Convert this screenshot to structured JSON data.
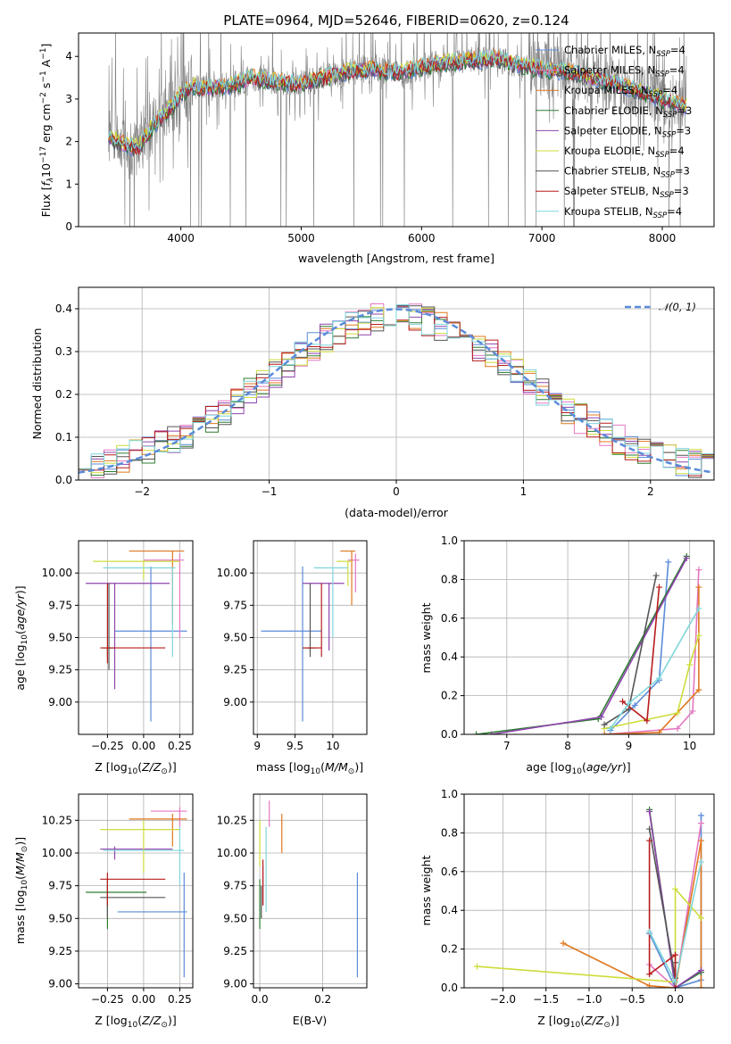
{
  "figure": {
    "title": "PLATE=0964, MJD=52646, FIBERID=0620, z=0.124"
  },
  "models": [
    {
      "label": "Chabrier MILES, N_SSP=4",
      "color": "#5b8bd9"
    },
    {
      "label": "Salpeter MILES, N_SSP=4",
      "color": "#e377c2"
    },
    {
      "label": "Kroupa MILES, N_SSP=4",
      "color": "#e0781f"
    },
    {
      "label": "Chabrier ELODIE, N_SSP=3",
      "color": "#2e7d32"
    },
    {
      "label": "Salpeter ELODIE, N_SSP=3",
      "color": "#8e44ad"
    },
    {
      "label": "Kroupa ELODIE, N_SSP=4",
      "color": "#cddc39"
    },
    {
      "label": "Chabrier STELIB, N_SSP=3",
      "color": "#555555"
    },
    {
      "label": "Salpeter STELIB, N_SSP=3",
      "color": "#b71c1c"
    },
    {
      "label": "Kroupa STELIB, N_SSP=4",
      "color": "#7fd6db"
    }
  ],
  "chart_data": [
    {
      "id": "spectrum",
      "type": "line",
      "title": "PLATE=0964, MJD=52646, FIBERID=0620, z=0.124",
      "xlabel": "wavelength [Angstrom, rest frame]",
      "ylabel": "Flux [fλ10^-17 erg cm^-2 s^-1 A^-1]",
      "xlim": [
        3150,
        8430
      ],
      "ylim": [
        0,
        4.55
      ],
      "xticks": [
        4000,
        5000,
        6000,
        7000,
        8000
      ],
      "yticks": [
        0,
        1,
        2,
        3,
        4
      ],
      "data_color": "#808080",
      "continuum": {
        "x": [
          3400,
          3550,
          3650,
          3750,
          3850,
          3950,
          4000,
          4100,
          4200,
          4400,
          4600,
          4800,
          5000,
          5200,
          5400,
          5600,
          5800,
          6000,
          6200,
          6400,
          6600,
          6800,
          7000,
          7200,
          7400,
          7600,
          7800,
          8000,
          8200
        ],
        "y": [
          2.1,
          1.9,
          1.85,
          2.3,
          2.6,
          2.9,
          3.1,
          3.3,
          3.25,
          3.3,
          3.5,
          3.4,
          3.35,
          3.5,
          3.65,
          3.7,
          3.6,
          3.75,
          3.85,
          3.9,
          3.95,
          3.8,
          3.7,
          3.65,
          3.5,
          3.35,
          3.2,
          3.0,
          2.8
        ]
      }
    },
    {
      "id": "residuals",
      "type": "bar",
      "xlabel": "(data-model)/error",
      "ylabel": "Normed distribution",
      "xlim": [
        -2.5,
        2.5
      ],
      "ylim": [
        0,
        0.45
      ],
      "xticks": [
        -2,
        -1,
        0,
        1,
        2
      ],
      "yticks": [
        0.0,
        0.1,
        0.2,
        0.3,
        0.4
      ],
      "bin_width": 0.1,
      "grid": true,
      "reference": {
        "name": "𝒩(0, 1)",
        "color": "#5b8bd9",
        "mean": 0,
        "sigma": 1
      }
    },
    {
      "id": "age_vs_Z",
      "type": "scatter",
      "xlabel": "Z [log10(Z/Z⊙)]",
      "ylabel": "age  [log10(age/yr)]",
      "xlim": [
        -0.45,
        0.34
      ],
      "ylim": [
        8.75,
        10.25
      ],
      "xticks": [
        -0.25,
        0.0,
        0.25
      ],
      "xtick_labels": [
        "−0.25",
        "0.00",
        "0.25"
      ],
      "yticks": [
        9.0,
        9.25,
        9.5,
        9.75,
        10.0
      ],
      "grid": true,
      "points": [
        {
          "m": 0,
          "x": 0.05,
          "y": 9.55,
          "ex": [
            -0.2,
            0.3
          ],
          "ey": [
            8.85,
            10.05
          ]
        },
        {
          "m": 1,
          "x": 0.25,
          "y": 10.1,
          "ex": [
            0.0,
            0.28
          ],
          "ey": [
            9.5,
            10.15
          ]
        },
        {
          "m": 2,
          "x": 0.2,
          "y": 10.17,
          "ex": [
            -0.1,
            0.28
          ],
          "ey": [
            9.6,
            10.17
          ]
        },
        {
          "m": 3,
          "x": -0.25,
          "y": 9.42,
          "ex": [
            -0.28,
            -0.2
          ],
          "ey": [
            9.35,
            9.42
          ]
        },
        {
          "m": 4,
          "x": -0.2,
          "y": 9.92,
          "ex": [
            -0.4,
            0.18
          ],
          "ey": [
            9.1,
            9.92
          ]
        },
        {
          "m": 5,
          "x": 0.0,
          "y": 10.09,
          "ex": [
            -0.35,
            0.25
          ],
          "ey": [
            9.95,
            10.09
          ]
        },
        {
          "m": 6,
          "x": -0.24,
          "y": 9.42,
          "ex": [
            -0.25,
            -0.22
          ],
          "ey": [
            9.25,
            9.92
          ]
        },
        {
          "m": 7,
          "x": -0.25,
          "y": 9.42,
          "ex": [
            -0.3,
            0.15
          ],
          "ey": [
            9.3,
            9.92
          ]
        },
        {
          "m": 8,
          "x": 0.2,
          "y": 10.04,
          "ex": [
            -0.28,
            0.22
          ],
          "ey": [
            9.35,
            10.04
          ]
        }
      ]
    },
    {
      "id": "age_vs_mass",
      "type": "scatter",
      "xlabel": "mass [log10(M/M⊙)]",
      "ylabel": "",
      "xlim": [
        8.95,
        10.45
      ],
      "ylim": [
        8.75,
        10.25
      ],
      "xticks": [
        9.0,
        9.5,
        10.0
      ],
      "yticks": [
        9.0,
        9.25,
        9.5,
        9.75,
        10.0
      ],
      "grid": true,
      "points": [
        {
          "m": 0,
          "x": 9.6,
          "y": 9.55,
          "ex": [
            9.05,
            9.85
          ],
          "ey": [
            8.85,
            10.05
          ]
        },
        {
          "m": 1,
          "x": 10.3,
          "y": 10.1,
          "ex": [
            10.2,
            10.35
          ],
          "ey": [
            9.85,
            10.15
          ]
        },
        {
          "m": 2,
          "x": 10.25,
          "y": 10.17,
          "ex": [
            10.1,
            10.3
          ],
          "ey": [
            9.75,
            10.17
          ]
        },
        {
          "m": 3,
          "x": 9.7,
          "y": 9.42,
          "ex": [
            9.6,
            9.8
          ],
          "ey": [
            9.4,
            9.42
          ]
        },
        {
          "m": 4,
          "x": 9.95,
          "y": 9.92,
          "ex": [
            9.6,
            10.15
          ],
          "ey": [
            9.4,
            9.92
          ]
        },
        {
          "m": 5,
          "x": 10.2,
          "y": 10.09,
          "ex": [
            10.05,
            10.25
          ],
          "ey": [
            9.9,
            10.09
          ]
        },
        {
          "m": 6,
          "x": 9.7,
          "y": 9.42,
          "ex": [
            9.65,
            9.75
          ],
          "ey": [
            9.35,
            9.92
          ]
        },
        {
          "m": 7,
          "x": 9.85,
          "y": 9.42,
          "ex": [
            9.6,
            9.85
          ],
          "ey": [
            9.35,
            9.92
          ]
        },
        {
          "m": 8,
          "x": 10.0,
          "y": 10.04,
          "ex": [
            9.75,
            10.2
          ],
          "ey": [
            9.5,
            10.04
          ]
        }
      ]
    },
    {
      "id": "weight_vs_age",
      "type": "line",
      "xlabel": "age  [log10(age/yr)]",
      "ylabel": "mass weight",
      "xlim": [
        6.3,
        10.4
      ],
      "ylim": [
        0,
        1.0
      ],
      "xticks": [
        7,
        8,
        9,
        10
      ],
      "yticks": [
        0.0,
        0.2,
        0.4,
        0.6,
        0.8,
        1.0
      ],
      "grid": true,
      "series": [
        {
          "m": 0,
          "x": [
            8.7,
            9.1,
            9.5,
            9.65
          ],
          "y": [
            0.02,
            0.15,
            0.28,
            0.89
          ]
        },
        {
          "m": 1,
          "x": [
            8.6,
            9.8,
            10.05,
            10.15
          ],
          "y": [
            0.0,
            0.03,
            0.12,
            0.85
          ]
        },
        {
          "m": 2,
          "x": [
            8.6,
            9.5,
            10.15,
            10.15
          ],
          "y": [
            0.0,
            0.01,
            0.23,
            0.76
          ]
        },
        {
          "m": 3,
          "x": [
            6.5,
            8.5,
            9.95
          ],
          "y": [
            0.0,
            0.08,
            0.92
          ]
        },
        {
          "m": 4,
          "x": [
            6.75,
            8.55,
            9.95
          ],
          "y": [
            0.0,
            0.09,
            0.91
          ]
        },
        {
          "m": 5,
          "x": [
            8.6,
            9.8,
            10.0,
            10.15
          ],
          "y": [
            0.03,
            0.11,
            0.36,
            0.51
          ]
        },
        {
          "m": 6,
          "x": [
            8.6,
            9.0,
            9.45
          ],
          "y": [
            0.05,
            0.13,
            0.82
          ]
        },
        {
          "m": 7,
          "x": [
            8.9,
            9.3,
            9.5
          ],
          "y": [
            0.17,
            0.07,
            0.76
          ]
        },
        {
          "m": 8,
          "x": [
            8.7,
            9.0,
            9.5,
            10.15
          ],
          "y": [
            0.03,
            0.16,
            0.29,
            0.65
          ]
        }
      ]
    },
    {
      "id": "mass_vs_Z",
      "type": "scatter",
      "xlabel": "Z [log10(Z/Z⊙)]",
      "ylabel": "mass [log10(M/M⊙)]",
      "xlim": [
        -0.45,
        0.34
      ],
      "ylim": [
        8.97,
        10.45
      ],
      "xticks": [
        -0.25,
        0.0,
        0.25
      ],
      "xtick_labels": [
        "−0.25",
        "0.00",
        "0.25"
      ],
      "yticks": [
        9.0,
        9.25,
        9.5,
        9.75,
        10.0,
        10.25
      ],
      "grid": true,
      "points": [
        {
          "m": 0,
          "x": 0.28,
          "y": 9.55,
          "ex": [
            -0.18,
            0.3
          ],
          "ey": [
            9.05,
            9.85
          ]
        },
        {
          "m": 1,
          "x": 0.25,
          "y": 10.32,
          "ex": [
            0.05,
            0.3
          ],
          "ey": [
            10.2,
            10.35
          ]
        },
        {
          "m": 2,
          "x": 0.2,
          "y": 10.26,
          "ex": [
            -0.1,
            0.3
          ],
          "ey": [
            10.05,
            10.3
          ]
        },
        {
          "m": 3,
          "x": -0.25,
          "y": 9.7,
          "ex": [
            -0.4,
            0.02
          ],
          "ey": [
            9.42,
            9.8
          ]
        },
        {
          "m": 4,
          "x": -0.2,
          "y": 10.03,
          "ex": [
            -0.3,
            0.2
          ],
          "ey": [
            9.95,
            10.05
          ]
        },
        {
          "m": 5,
          "x": 0.0,
          "y": 10.18,
          "ex": [
            -0.3,
            0.25
          ],
          "ey": [
            9.85,
            10.25
          ]
        },
        {
          "m": 6,
          "x": -0.25,
          "y": 9.66,
          "ex": [
            -0.3,
            0.15
          ],
          "ey": [
            9.5,
            9.75
          ]
        },
        {
          "m": 7,
          "x": -0.25,
          "y": 9.8,
          "ex": [
            -0.3,
            0.15
          ],
          "ey": [
            9.6,
            9.85
          ]
        },
        {
          "m": 8,
          "x": 0.25,
          "y": 10.02,
          "ex": [
            -0.28,
            0.28
          ],
          "ey": [
            9.75,
            10.2
          ]
        }
      ]
    },
    {
      "id": "mass_vs_EBV",
      "type": "scatter",
      "xlabel": "E(B-V)",
      "ylabel": "",
      "xlim": [
        -0.02,
        0.34
      ],
      "ylim": [
        8.97,
        10.45
      ],
      "xticks": [
        0.0,
        0.2
      ],
      "xtick_labels": [
        "0.0",
        "0.2"
      ],
      "yticks": [
        9.0,
        9.25,
        9.5,
        9.75,
        10.0,
        10.25
      ],
      "grid": true,
      "points": [
        {
          "m": 0,
          "x": 0.31,
          "y": 9.55,
          "ex": [
            0.31,
            0.31
          ],
          "ey": [
            9.05,
            9.85
          ]
        },
        {
          "m": 1,
          "x": 0.03,
          "y": 10.32,
          "ex": [
            0.03,
            0.03
          ],
          "ey": [
            10.2,
            10.4
          ]
        },
        {
          "m": 2,
          "x": 0.07,
          "y": 10.26,
          "ex": [
            0.07,
            0.07
          ],
          "ey": [
            10.0,
            10.3
          ]
        },
        {
          "m": 3,
          "x": 0.0,
          "y": 9.7,
          "ex": [
            0.0,
            0.0
          ],
          "ey": [
            9.42,
            9.8
          ]
        },
        {
          "m": 4,
          "x": 0.01,
          "y": 9.8,
          "ex": [
            0.01,
            0.01
          ],
          "ey": [
            9.6,
            9.9
          ]
        },
        {
          "m": 5,
          "x": 0.0,
          "y": 10.18,
          "ex": [
            0.0,
            0.0
          ],
          "ey": [
            9.9,
            10.25
          ]
        },
        {
          "m": 6,
          "x": 0.005,
          "y": 9.66,
          "ex": [
            0.005,
            0.005
          ],
          "ey": [
            9.5,
            9.75
          ]
        },
        {
          "m": 7,
          "x": 0.01,
          "y": 9.8,
          "ex": [
            0.01,
            0.01
          ],
          "ey": [
            9.6,
            9.95
          ]
        },
        {
          "m": 8,
          "x": 0.02,
          "y": 10.02,
          "ex": [
            0.02,
            0.02
          ],
          "ey": [
            9.55,
            10.2
          ]
        }
      ]
    },
    {
      "id": "weight_vs_Z",
      "type": "line",
      "xlabel": "Z [log10(Z/Z⊙)]",
      "ylabel": "mass weight",
      "xlim": [
        -2.45,
        0.45
      ],
      "ylim": [
        0,
        1.0
      ],
      "xticks": [
        -2.0,
        -1.5,
        -1.0,
        -0.5,
        0.0
      ],
      "xtick_labels": [
        "−2.0",
        "−1.5",
        "−1.0",
        "−0.5",
        "0.0"
      ],
      "yticks": [
        0.0,
        0.2,
        0.4,
        0.6,
        0.8,
        1.0
      ],
      "grid": true,
      "series": [
        {
          "m": 0,
          "x": [
            0.3,
            0.3,
            0.0,
            -0.3
          ],
          "y": [
            0.89,
            0.04,
            0.0,
            0.28
          ]
        },
        {
          "m": 1,
          "x": [
            0.3,
            0.0,
            -0.3
          ],
          "y": [
            0.85,
            0.0,
            0.12
          ]
        },
        {
          "m": 2,
          "x": [
            -1.3,
            -0.3,
            0.0,
            0.3,
            0.3
          ],
          "y": [
            0.23,
            0.01,
            0.0,
            0.76,
            0.0
          ]
        },
        {
          "m": 3,
          "x": [
            -0.3,
            0.0,
            0.3
          ],
          "y": [
            0.92,
            0.0,
            0.08
          ]
        },
        {
          "m": 4,
          "x": [
            -0.3,
            0.0,
            0.3
          ],
          "y": [
            0.91,
            0.0,
            0.09
          ]
        },
        {
          "m": 5,
          "x": [
            -2.3,
            0.0,
            0.0,
            0.3
          ],
          "y": [
            0.11,
            0.03,
            0.51,
            0.36
          ]
        },
        {
          "m": 6,
          "x": [
            -0.3,
            0.0,
            0.0
          ],
          "y": [
            0.82,
            0.05,
            0.13
          ]
        },
        {
          "m": 7,
          "x": [
            -0.3,
            -0.3,
            0.0,
            0.0
          ],
          "y": [
            0.76,
            0.07,
            0.17,
            0.0
          ]
        },
        {
          "m": 8,
          "x": [
            -0.3,
            0.0,
            0.3
          ],
          "y": [
            0.29,
            0.03,
            0.65
          ]
        }
      ]
    }
  ]
}
